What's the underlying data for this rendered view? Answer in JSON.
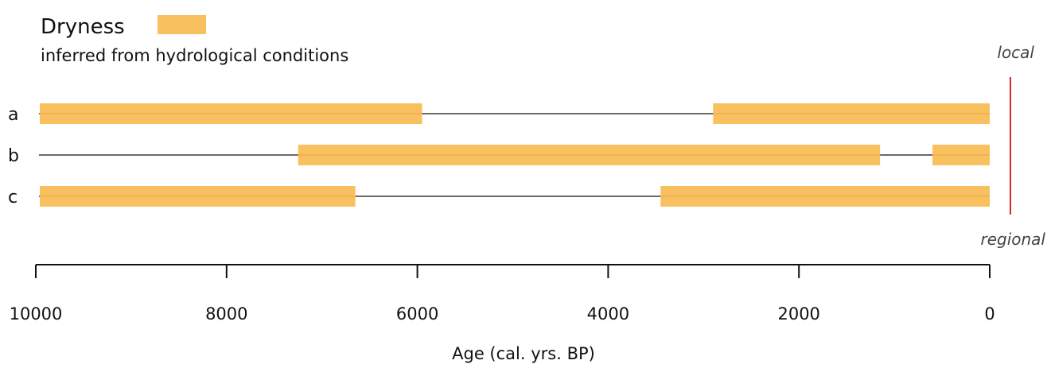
{
  "chart_data": {
    "type": "timeline",
    "title": "Dryness",
    "subtitle": "inferred from hydrological conditions",
    "xlabel": "Age (cal. yrs. BP)",
    "xlim": [
      10000,
      0
    ],
    "x_reversed": true,
    "xticks": [
      10000,
      8000,
      6000,
      4000,
      2000,
      0
    ],
    "bar_color": "#F9C05F",
    "bar_midline_color": "#E8A54A",
    "line_color": "#111111",
    "scale_bar_color": "#D9262C",
    "scale_labels": {
      "top": "local",
      "bottom": "regional"
    },
    "rows": [
      {
        "label": "a",
        "start": 10000,
        "end": 0,
        "dry_intervals": [
          [
            10000,
            5950
          ],
          [
            2900,
            0
          ]
        ]
      },
      {
        "label": "b",
        "start": 10000,
        "end": 0,
        "dry_intervals": [
          [
            7250,
            1150
          ],
          [
            600,
            0
          ]
        ]
      },
      {
        "label": "c",
        "start": 10000,
        "end": 0,
        "dry_intervals": [
          [
            10000,
            6650
          ],
          [
            3450,
            0
          ]
        ]
      }
    ]
  }
}
